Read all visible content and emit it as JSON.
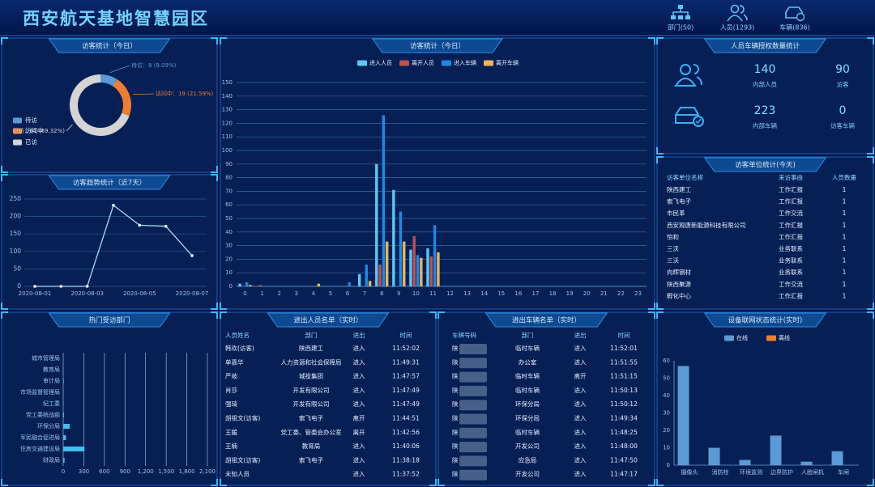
{
  "header": {
    "title": "西安航天基地智慧园区",
    "nav": [
      "部门(50)",
      "人员(1293)",
      "车辆(836)"
    ]
  },
  "chart_data": [
    {
      "type": "pie",
      "title": "访客统计（今日）",
      "categories": [
        "待访",
        "访问中",
        "已访"
      ],
      "values": [
        8,
        19,
        61
      ],
      "value_labels": [
        "待访：8 (9.09%)",
        "访问中：19 (21.59%)",
        "已访：61 (69.32%)"
      ],
      "colors": [
        "#5b9bd5",
        "#ed7d31",
        "#d4d4d4"
      ],
      "legend": "left"
    },
    {
      "type": "line",
      "title": "访客趋势统计（近7天）",
      "categories": [
        "2020-08-01",
        null,
        "2020-08-03",
        null,
        "2020-08-05",
        null,
        "2020-08-07"
      ],
      "values": [
        0,
        0,
        0,
        232,
        175,
        172,
        88
      ],
      "color": "#a8dcf5",
      "ylim": [
        0,
        250
      ],
      "yticks": [
        0,
        50,
        100,
        150,
        200,
        250
      ],
      "grid": true
    },
    {
      "type": "bar",
      "title": "访客统计（今日）",
      "categories": [
        "0",
        "1",
        "2",
        "3",
        "4",
        "5",
        "6",
        "7",
        "8",
        "9",
        "10",
        "11",
        "12",
        "13",
        "14",
        "15",
        "16",
        "17",
        "18",
        "19",
        "20",
        "21",
        "22",
        "23"
      ],
      "series": [
        {
          "name": "进入人员",
          "color": "#5cc8f2",
          "values": [
            2,
            0,
            0,
            0,
            0,
            0,
            0,
            9,
            90,
            71,
            27,
            28,
            0,
            0,
            0,
            0,
            0,
            0,
            0,
            0,
            0,
            0,
            0,
            0
          ]
        },
        {
          "name": "离开人员",
          "color": "#c0504d",
          "values": [
            0,
            1,
            0,
            0,
            0,
            0,
            0,
            0,
            16,
            0,
            37,
            22,
            0,
            0,
            0,
            0,
            0,
            0,
            0,
            0,
            0,
            0,
            0,
            0
          ]
        },
        {
          "name": "进入车辆",
          "color": "#1e88e5",
          "values": [
            3,
            0,
            0,
            0,
            0,
            0,
            3,
            16,
            126,
            55,
            23,
            45,
            0,
            0,
            0,
            0,
            0,
            0,
            0,
            0,
            0,
            0,
            0,
            0
          ]
        },
        {
          "name": "离开车辆",
          "color": "#f0b45a",
          "values": [
            1,
            0,
            0,
            0,
            2,
            0,
            0,
            4,
            33,
            33,
            21,
            25,
            0,
            0,
            0,
            0,
            0,
            0,
            0,
            0,
            0,
            0,
            0,
            0
          ]
        }
      ],
      "ylim": [
        0,
        150
      ],
      "yticks": [
        0,
        10,
        20,
        30,
        40,
        50,
        60,
        70,
        80,
        90,
        100,
        110,
        120,
        130,
        140,
        150
      ],
      "grid": true,
      "legend": "top"
    },
    {
      "type": "hbar",
      "title": "热门受访部门",
      "categories": [
        "城市管理局",
        "教育局",
        "审计局",
        "市场监督管理局",
        "纪工委",
        "党工委统战部",
        "环保分局",
        "军民融合促进局",
        "住房交通建设局",
        "财政局"
      ],
      "values": [
        3,
        4,
        8,
        6,
        5,
        12,
        95,
        40,
        310,
        20
      ],
      "color": "#3fc0ee",
      "xlim": [
        0,
        2100
      ],
      "xticks": [
        0,
        300,
        600,
        900,
        {
          "value": 1200,
          "label": "1,200"
        },
        {
          "value": 1500,
          "label": "1,500"
        },
        {
          "value": 1800,
          "label": "1,800"
        },
        {
          "value": 2100,
          "label": "2,100"
        }
      ],
      "grid": true
    },
    {
      "type": "bar",
      "title": "设备联网状态统计(实时)",
      "categories": [
        "摄像头",
        "消防栓",
        "环境监测",
        "边界防护",
        "人脸闸机",
        "车闸"
      ],
      "series": [
        {
          "name": "在线",
          "color": "#5b9bd5",
          "values": [
            57,
            10,
            3,
            17,
            2,
            8
          ]
        },
        {
          "name": "离线",
          "color": "#ed7d31",
          "values": [
            0,
            0,
            0,
            0,
            0,
            0
          ]
        }
      ],
      "ylim": [
        0,
        60
      ],
      "yticks": [
        0,
        10,
        20,
        30,
        40,
        50,
        60
      ],
      "grid": false,
      "legend": "top"
    }
  ],
  "auth": {
    "title": "人员车辆授权数量统计",
    "items": [
      {
        "value": 140,
        "label": "内部人员"
      },
      {
        "value": 90,
        "label": "访客"
      },
      {
        "value": 223,
        "label": "内部车辆"
      },
      {
        "value": 0,
        "label": "访客车辆"
      }
    ]
  },
  "units": {
    "title": "访客单位统计(今天)",
    "header": [
      "访客单位名称",
      "来访事由",
      "人员数量"
    ],
    "rows": [
      [
        "陕西建工",
        "工作汇报",
        1
      ],
      [
        "索飞电子",
        "工作汇报",
        1
      ],
      [
        "市民革",
        "工作交流",
        1
      ],
      [
        "西安观唐新能源科技有限公司",
        "工作汇报",
        1
      ],
      [
        "怡和",
        "工作汇报",
        1
      ],
      [
        "三沃",
        "业务联系",
        1
      ],
      [
        "三沃",
        "业务联系",
        1
      ],
      [
        "向辉钢材",
        "业务联系",
        1
      ],
      [
        "陕西聚源",
        "工作交流",
        1
      ],
      [
        "孵化中心",
        "工作汇报",
        1
      ]
    ]
  },
  "people": {
    "title": "进出人员名单（实时）",
    "header": [
      "人员姓名",
      "部门",
      "进出",
      "时间"
    ],
    "rows": [
      [
        "韩欢(访客)",
        "陕西建工",
        "进入",
        "11:52:02"
      ],
      [
        "单嘉华",
        "人力资源和社会保障局",
        "进入",
        "11:49:31"
      ],
      [
        "严岐",
        "城投集团",
        "进入",
        "11:47:57"
      ],
      [
        "肖莎",
        "开发有限公司",
        "进入",
        "11:47:49"
      ],
      [
        "强琦",
        "开发有限公司",
        "进入",
        "11:47:49"
      ],
      [
        "胡祖文(访客)",
        "索飞电子",
        "离开",
        "11:44:51"
      ],
      [
        "王媛",
        "党工委、管委会办公室",
        "离开",
        "11:42:56"
      ],
      [
        "王楠",
        "教育局",
        "进入",
        "11:40:06"
      ],
      [
        "胡祖文(访客)",
        "索飞电子",
        "进入",
        "11:38:18"
      ],
      [
        "未知人员",
        null,
        "进入",
        "11:37:52"
      ]
    ]
  },
  "vehicles": {
    "title": "进出车辆名单（实时）",
    "header": [
      "车牌号码",
      "部门",
      "进出",
      "时间"
    ],
    "rows": [
      [
        "陕",
        "临时车辆",
        "进入",
        "11:52:01"
      ],
      [
        "陕",
        "办公室",
        "进入",
        "11:51:55"
      ],
      [
        "陕",
        "临时车辆",
        "离开",
        "11:51:15"
      ],
      [
        "陕",
        "临时车辆",
        "进入",
        "11:50:13"
      ],
      [
        "陕",
        "环保分局",
        "进入",
        "11:50:12"
      ],
      [
        "陕",
        "环保分局",
        "进入",
        "11:49:34"
      ],
      [
        "陕",
        "临时车辆",
        "进入",
        "11:48:25"
      ],
      [
        "陕",
        "开发公司",
        "进入",
        "11:48:00"
      ],
      [
        "陕",
        "应急局",
        "进入",
        "11:47:50"
      ],
      [
        "陕",
        "开发公司",
        "进入",
        "11:47:17"
      ]
    ]
  }
}
